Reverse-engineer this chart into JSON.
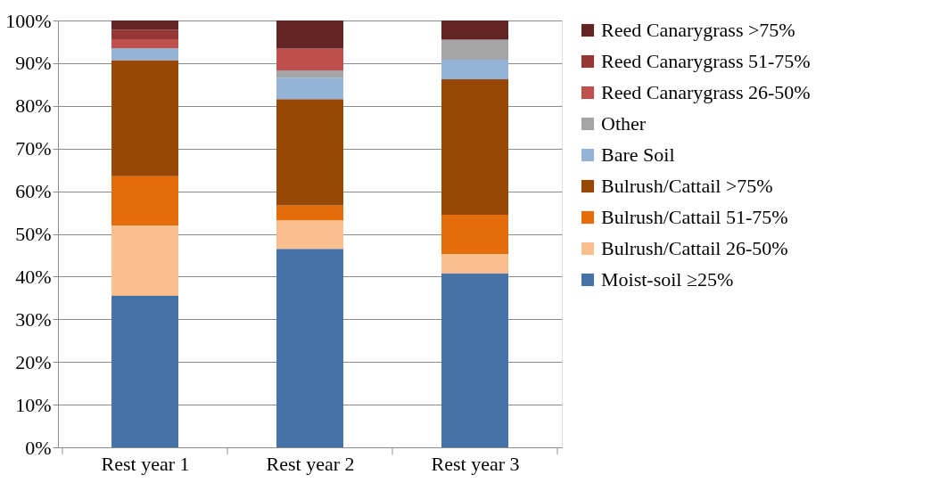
{
  "chart_data": {
    "type": "bar",
    "stacked": true,
    "categories": [
      "Rest year 1",
      "Rest year 2",
      "Rest year 3"
    ],
    "series": [
      {
        "name": "Moist-soil ≥25%",
        "color": "#4572a7",
        "values": [
          35.5,
          46.5,
          40.7
        ]
      },
      {
        "name": "Bulrush/Cattail 26-50%",
        "color": "#f9bf8f",
        "values": [
          16.5,
          6.7,
          4.6
        ]
      },
      {
        "name": "Bulrush/Cattail 51-75%",
        "color": "#e46c0a",
        "values": [
          11.5,
          3.5,
          9.2
        ]
      },
      {
        "name": "Bulrush/Cattail >75%",
        "color": "#974706",
        "values": [
          27.2,
          24.9,
          31.7
        ]
      },
      {
        "name": "Bare Soil",
        "color": "#95b3d7",
        "values": [
          2.8,
          5.0,
          4.6
        ]
      },
      {
        "name": "Other",
        "color": "#a5a5a5",
        "values": [
          0,
          1.7,
          4.7
        ]
      },
      {
        "name": "Reed Canarygrass 26-50%",
        "color": "#c0504d",
        "values": [
          2.1,
          5.1,
          0
        ]
      },
      {
        "name": "Reed Canarygrass 51-75%",
        "color": "#953735",
        "values": [
          2.2,
          0,
          0
        ]
      },
      {
        "name": "Reed Canarygrass >75%",
        "color": "#632523",
        "values": [
          2.2,
          6.6,
          4.5
        ]
      }
    ],
    "ylim": [
      0,
      100
    ],
    "yticks": [
      {
        "value": 0,
        "label": "0%"
      },
      {
        "value": 10,
        "label": "10%"
      },
      {
        "value": 20,
        "label": "20%"
      },
      {
        "value": 30,
        "label": "30%"
      },
      {
        "value": 40,
        "label": "40%"
      },
      {
        "value": 50,
        "label": "50%"
      },
      {
        "value": 60,
        "label": "60%"
      },
      {
        "value": 70,
        "label": "70%"
      },
      {
        "value": 80,
        "label": "80%"
      },
      {
        "value": 90,
        "label": "90%"
      },
      {
        "value": 100,
        "label": "100%"
      }
    ],
    "grid": "y",
    "legend": "right"
  }
}
